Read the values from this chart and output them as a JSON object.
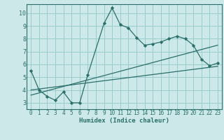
{
  "xlabel": "Humidex (Indice chaleur)",
  "background_color": "#cce8e8",
  "grid_color": "#99cccc",
  "line_color": "#2a6f6a",
  "xlim": [
    -0.5,
    23.5
  ],
  "ylim": [
    2.5,
    10.7
  ],
  "yticks": [
    3,
    4,
    5,
    6,
    7,
    8,
    9,
    10
  ],
  "xticks": [
    0,
    1,
    2,
    3,
    4,
    5,
    6,
    7,
    8,
    9,
    10,
    11,
    12,
    13,
    14,
    15,
    16,
    17,
    18,
    19,
    20,
    21,
    22,
    23
  ],
  "curve1_x": [
    0,
    1,
    2,
    3,
    4,
    5,
    6,
    7,
    9,
    10,
    11,
    12,
    13,
    14,
    15,
    16,
    17,
    18,
    19,
    20,
    21,
    22,
    23
  ],
  "curve1_y": [
    5.5,
    4.0,
    3.5,
    3.2,
    3.85,
    3.0,
    3.0,
    5.2,
    9.2,
    10.4,
    9.1,
    8.85,
    8.1,
    7.5,
    7.6,
    7.75,
    8.0,
    8.2,
    8.0,
    7.5,
    6.4,
    5.9,
    6.1
  ],
  "curve2_x": [
    0,
    23
  ],
  "curve2_y": [
    4.0,
    5.85
  ],
  "curve3_x": [
    0,
    23
  ],
  "curve3_y": [
    3.6,
    7.5
  ]
}
